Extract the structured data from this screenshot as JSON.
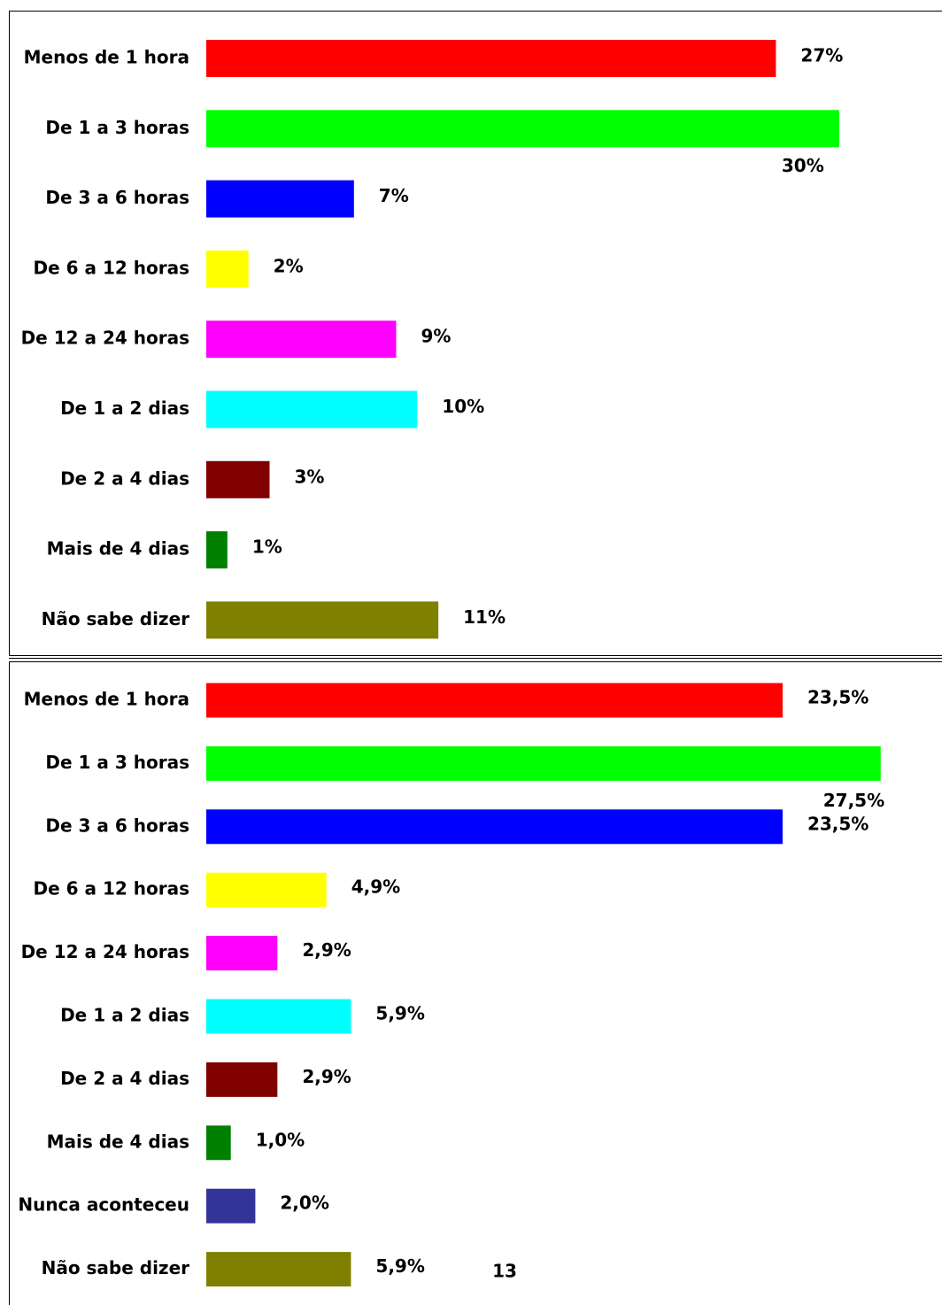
{
  "page_number": "13",
  "chart_data": [
    {
      "type": "bar",
      "categories": [
        "Menos de 1 hora",
        "De 1 a 3 horas",
        "De 3 a 6 horas",
        "De 6 a 12 horas",
        "De 12 a 24 horas",
        "De 1 a 2 dias",
        "De 2 a 4 dias",
        "Mais de 4 dias",
        "Não sabe dizer"
      ],
      "values": [
        27,
        30,
        7,
        2,
        9,
        10,
        3,
        1,
        11
      ],
      "value_labels": [
        "27%",
        "30%",
        "7%",
        "2%",
        "9%",
        "10%",
        "3%",
        "1%",
        "11%"
      ],
      "colors": [
        "#ff0000",
        "#00ff00",
        "#0000ff",
        "#ffff00",
        "#ff00ff",
        "#00ffff",
        "#800000",
        "#008000",
        "#808000"
      ]
    },
    {
      "type": "bar",
      "categories": [
        "Menos de 1 hora",
        "De 1 a 3 horas",
        "De 3 a 6 horas",
        "De 6 a 12 horas",
        "De 12 a 24 horas",
        "De 1 a 2 dias",
        "De 2 a 4 dias",
        "Mais de 4 dias",
        "Nunca aconteceu",
        "Não sabe dizer"
      ],
      "values": [
        23.5,
        27.5,
        23.5,
        4.9,
        2.9,
        5.9,
        2.9,
        1.0,
        2.0,
        5.9
      ],
      "value_labels": [
        "23,5%",
        "27,5%",
        "23,5%",
        "4,9%",
        "2,9%",
        "5,9%",
        "2,9%",
        "1,0%",
        "2,0%",
        "5,9%"
      ],
      "colors": [
        "#ff0000",
        "#00ff00",
        "#0000ff",
        "#ffff00",
        "#ff00ff",
        "#00ffff",
        "#800000",
        "#008000",
        "#333399",
        "#808000"
      ]
    }
  ]
}
